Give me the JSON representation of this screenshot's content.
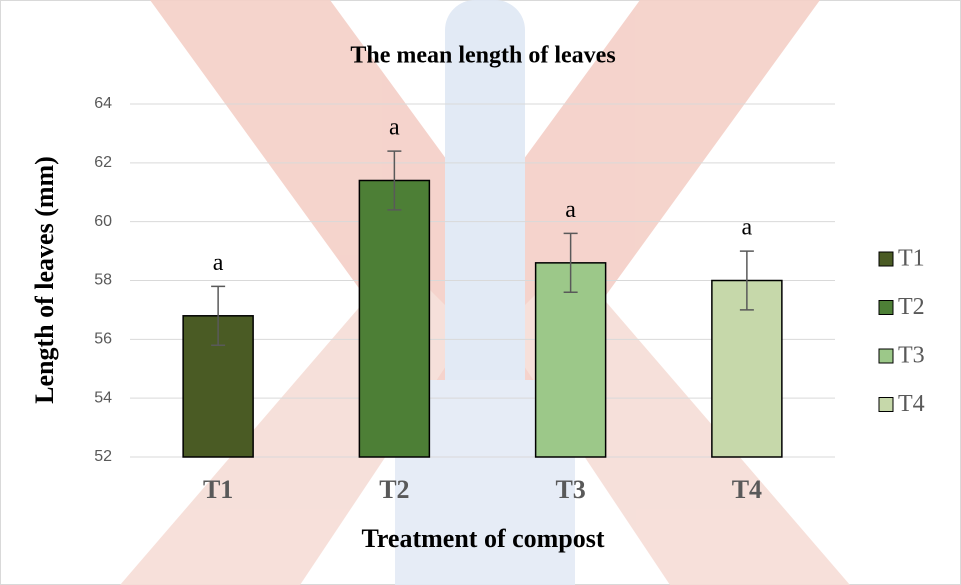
{
  "chart_data": {
    "type": "bar",
    "title": "The mean length of leaves",
    "xlabel": "Treatment of compost",
    "ylabel": "Length of leaves (mm)",
    "categories": [
      "T1",
      "T2",
      "T3",
      "T4"
    ],
    "values": [
      56.8,
      61.4,
      58.6,
      58.0
    ],
    "errors": [
      1.0,
      1.0,
      1.0,
      1.0
    ],
    "annotations": [
      "a",
      "a",
      "a",
      "a"
    ],
    "colors": [
      "#4a5b24",
      "#4d7f36",
      "#9cc889",
      "#c6d8aa"
    ],
    "ylim": [
      52,
      64
    ],
    "yticks": [
      52,
      54,
      56,
      58,
      60,
      62,
      64
    ],
    "grid": true,
    "legend": "right"
  }
}
